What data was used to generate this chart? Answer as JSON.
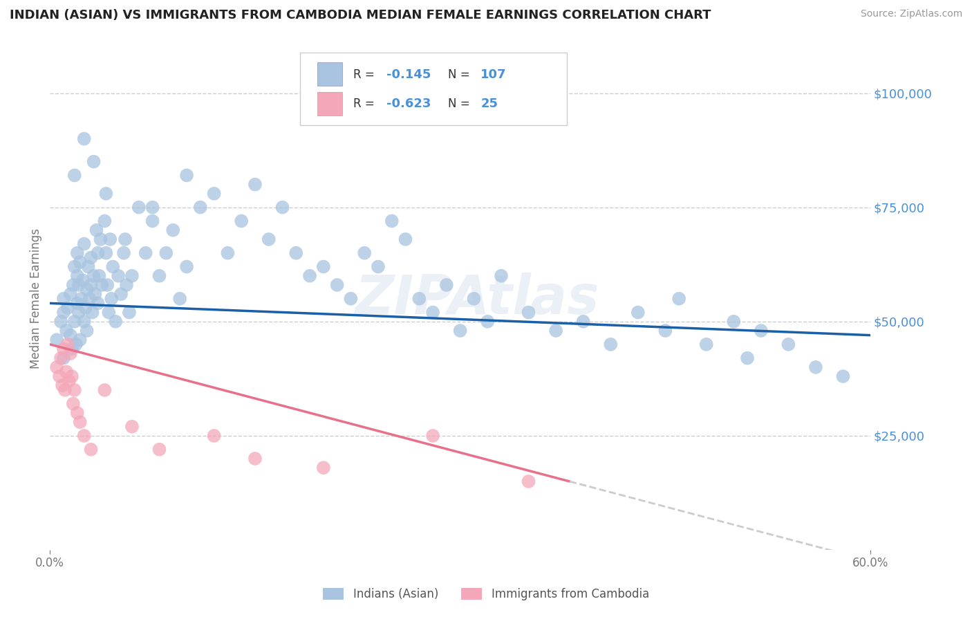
{
  "title": "INDIAN (ASIAN) VS IMMIGRANTS FROM CAMBODIA MEDIAN FEMALE EARNINGS CORRELATION CHART",
  "source": "Source: ZipAtlas.com",
  "ylabel": "Median Female Earnings",
  "xlim": [
    0.0,
    0.6
  ],
  "ylim": [
    0,
    110000
  ],
  "yticks": [
    0,
    25000,
    50000,
    75000,
    100000
  ],
  "ytick_labels": [
    "",
    "$25,000",
    "$50,000",
    "$75,000",
    "$100,000"
  ],
  "series1_color": "#a8c4e0",
  "series2_color": "#f4a7b9",
  "line1_color": "#1a5fa8",
  "line2_color": "#e8708a",
  "line2_dash_color": "#cccccc",
  "R1": -0.145,
  "N1": 107,
  "R2": -0.623,
  "N2": 25,
  "legend_label1": "Indians (Asian)",
  "legend_label2": "Immigrants from Cambodia",
  "watermark": "ZIPAtlas",
  "background_color": "#ffffff",
  "title_color": "#222222",
  "axis_label_color": "#777777",
  "ytick_color": "#4a90d9",
  "xtick_color": "#777777",
  "grid_color": "#cccccc",
  "line2_solid_end": 0.38,
  "series1_x": [
    0.005,
    0.008,
    0.01,
    0.01,
    0.01,
    0.012,
    0.013,
    0.015,
    0.015,
    0.016,
    0.017,
    0.018,
    0.018,
    0.019,
    0.02,
    0.02,
    0.02,
    0.021,
    0.021,
    0.022,
    0.022,
    0.023,
    0.024,
    0.025,
    0.025,
    0.026,
    0.027,
    0.027,
    0.028,
    0.029,
    0.03,
    0.03,
    0.031,
    0.032,
    0.033,
    0.034,
    0.035,
    0.035,
    0.036,
    0.037,
    0.038,
    0.04,
    0.041,
    0.042,
    0.043,
    0.044,
    0.045,
    0.046,
    0.048,
    0.05,
    0.052,
    0.054,
    0.056,
    0.058,
    0.06,
    0.065,
    0.07,
    0.075,
    0.08,
    0.085,
    0.09,
    0.095,
    0.1,
    0.11,
    0.12,
    0.13,
    0.14,
    0.15,
    0.16,
    0.17,
    0.18,
    0.19,
    0.2,
    0.21,
    0.22,
    0.23,
    0.24,
    0.25,
    0.26,
    0.27,
    0.28,
    0.29,
    0.3,
    0.31,
    0.32,
    0.33,
    0.35,
    0.37,
    0.39,
    0.41,
    0.43,
    0.45,
    0.46,
    0.48,
    0.5,
    0.51,
    0.52,
    0.54,
    0.56,
    0.58,
    0.025,
    0.032,
    0.018,
    0.041,
    0.055,
    0.075,
    0.1
  ],
  "series1_y": [
    46000,
    50000,
    42000,
    52000,
    55000,
    48000,
    53000,
    47000,
    56000,
    44000,
    58000,
    50000,
    62000,
    45000,
    60000,
    65000,
    54000,
    52000,
    58000,
    46000,
    63000,
    55000,
    59000,
    50000,
    67000,
    53000,
    57000,
    48000,
    62000,
    55000,
    64000,
    58000,
    52000,
    60000,
    56000,
    70000,
    54000,
    65000,
    60000,
    68000,
    58000,
    72000,
    65000,
    58000,
    52000,
    68000,
    55000,
    62000,
    50000,
    60000,
    56000,
    65000,
    58000,
    52000,
    60000,
    75000,
    65000,
    72000,
    60000,
    65000,
    70000,
    55000,
    62000,
    75000,
    78000,
    65000,
    72000,
    80000,
    68000,
    75000,
    65000,
    60000,
    62000,
    58000,
    55000,
    65000,
    62000,
    72000,
    68000,
    55000,
    52000,
    58000,
    48000,
    55000,
    50000,
    60000,
    52000,
    48000,
    50000,
    45000,
    52000,
    48000,
    55000,
    45000,
    50000,
    42000,
    48000,
    45000,
    40000,
    38000,
    90000,
    85000,
    82000,
    78000,
    68000,
    75000,
    82000
  ],
  "series2_x": [
    0.005,
    0.007,
    0.008,
    0.009,
    0.01,
    0.011,
    0.012,
    0.013,
    0.014,
    0.015,
    0.016,
    0.017,
    0.018,
    0.02,
    0.022,
    0.025,
    0.03,
    0.04,
    0.06,
    0.08,
    0.12,
    0.15,
    0.2,
    0.28,
    0.35
  ],
  "series2_y": [
    40000,
    38000,
    42000,
    36000,
    44000,
    35000,
    39000,
    45000,
    37000,
    43000,
    38000,
    32000,
    35000,
    30000,
    28000,
    25000,
    22000,
    35000,
    27000,
    22000,
    25000,
    20000,
    18000,
    25000,
    15000
  ]
}
